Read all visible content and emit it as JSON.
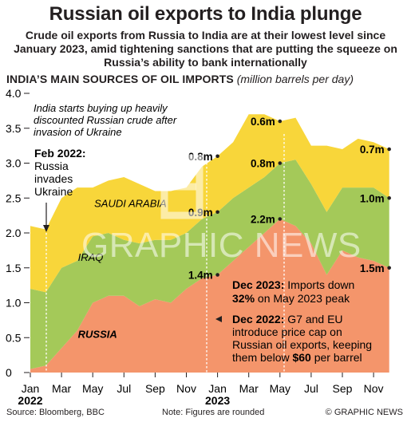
{
  "header": {
    "title": "Russian oil exports to India plunge",
    "subtitle": "Crude oil exports from Russia to India are at their lowest level since January 2023, amid tightening sanctions that are putting the squeeze on Russia’s ability to bank internationally",
    "section_title": "INDIA’S MAIN SOURCES OF OIL IMPORTS",
    "section_unit": "(million barrels per day)"
  },
  "footer": {
    "source": "Source: Bloomberg, BBC",
    "note": "Note: Figures are rounded",
    "credit": "© GRAPHIC NEWS"
  },
  "watermark": "GRAPHIC NEWS",
  "colors": {
    "russia": "#f4956b",
    "iraq": "#a4c959",
    "saudi": "#f8d63a",
    "text": "#231f20"
  },
  "chart_data": {
    "type": "area",
    "stacked": true,
    "x": [
      "Jan 2022",
      "Feb 2022",
      "Mar 2022",
      "Apr 2022",
      "May 2022",
      "Jun 2022",
      "Jul 2022",
      "Aug 2022",
      "Sep 2022",
      "Oct 2022",
      "Nov 2022",
      "Dec 2022",
      "Jan 2023",
      "Feb 2023",
      "Mar 2023",
      "Apr 2023",
      "May 2023",
      "Jun 2023",
      "Jul 2023",
      "Aug 2023",
      "Sep 2023",
      "Oct 2023",
      "Nov 2023",
      "Dec 2023"
    ],
    "series": [
      {
        "name": "RUSSIA",
        "color": "#f4956b",
        "values": [
          0.05,
          0.1,
          0.35,
          0.6,
          1.0,
          1.1,
          1.1,
          0.95,
          1.05,
          1.0,
          1.2,
          1.35,
          1.4,
          1.6,
          1.8,
          2.0,
          2.2,
          2.1,
          1.85,
          1.4,
          1.75,
          1.65,
          1.6,
          1.5
        ]
      },
      {
        "name": "IRAQ",
        "color": "#a4c959",
        "values": [
          1.15,
          1.05,
          1.15,
          1.0,
          0.95,
          0.9,
          0.8,
          0.9,
          0.85,
          0.9,
          0.8,
          0.85,
          0.9,
          0.9,
          0.85,
          0.8,
          0.8,
          0.95,
          0.85,
          0.9,
          0.9,
          1.0,
          1.05,
          1.0
        ]
      },
      {
        "name": "SAUDI ARABIA",
        "color": "#f8d63a",
        "values": [
          0.9,
          0.9,
          1.0,
          1.05,
          0.7,
          0.75,
          0.9,
          0.85,
          0.7,
          0.7,
          0.65,
          0.75,
          0.8,
          0.8,
          1.05,
          0.9,
          0.6,
          0.6,
          0.55,
          0.95,
          0.55,
          0.7,
          0.65,
          0.7
        ]
      }
    ],
    "ylim": [
      0,
      4.0
    ],
    "yticks": [
      "0",
      "0.5",
      "1.0",
      "1.5",
      "2.0",
      "2.5",
      "3.0",
      "3.5",
      "4.0"
    ],
    "xticks": [
      {
        "label": "Jan",
        "index": 0
      },
      {
        "label": "Mar",
        "index": 2
      },
      {
        "label": "May",
        "index": 4
      },
      {
        "label": "Jul",
        "index": 6
      },
      {
        "label": "Sep",
        "index": 8
      },
      {
        "label": "Nov",
        "index": 10
      },
      {
        "label": "Jan",
        "index": 12
      },
      {
        "label": "Mar",
        "index": 14
      },
      {
        "label": "May",
        "index": 16
      },
      {
        "label": "Jul",
        "index": 18
      },
      {
        "label": "Sep",
        "index": 20
      },
      {
        "label": "Nov",
        "index": 22
      }
    ],
    "years": [
      {
        "label": "2022",
        "index": 0
      },
      {
        "label": "2023",
        "index": 12
      }
    ],
    "grid": false,
    "series_labels": [
      {
        "text": "SAUDI ARABIA",
        "index": 4.1,
        "y": 2.37
      },
      {
        "text": "IRAQ",
        "index": 3.05,
        "y": 1.6
      },
      {
        "text": "RUSSIA",
        "index": 3.05,
        "y": 0.5
      }
    ],
    "point_labels": [
      {
        "text": "0.8m",
        "index": 12,
        "y": 3.1
      },
      {
        "text": "0.9m",
        "index": 12,
        "y": 2.3
      },
      {
        "text": "1.4m",
        "index": 12,
        "y": 1.4
      },
      {
        "text": "0.6m",
        "index": 16,
        "y": 3.6
      },
      {
        "text": "0.8m",
        "index": 16,
        "y": 3.0
      },
      {
        "text": "2.2m",
        "index": 16,
        "y": 2.2
      },
      {
        "text": "0.7m",
        "index": 23,
        "y": 3.2
      },
      {
        "text": "1.0m",
        "index": 23,
        "y": 2.5
      },
      {
        "text": "1.5m",
        "index": 23,
        "y": 1.5
      }
    ],
    "annotations": {
      "india_buying": "India starts buying up heavily discounted Russian crude after invasion of Ukraine",
      "feb2022_head": "Feb 2022:",
      "feb2022_body": [
        "Russia",
        "invades",
        "Ukraine"
      ],
      "dec2023_head": "Dec 2023:",
      "dec2023_mid": " Imports down",
      "dec2023_pct": "32%",
      "dec2023_tail": " on May 2023 peak",
      "dec2022_head": "Dec 2022:",
      "dec2022_first": " G7 and EU",
      "dec2022_lines": [
        "introduce price cap on",
        "Russian oil exports, keeping"
      ],
      "dec2022_them": "them below ",
      "dec2022_amount": "$60",
      "dec2022_tail": " per barrel"
    }
  }
}
